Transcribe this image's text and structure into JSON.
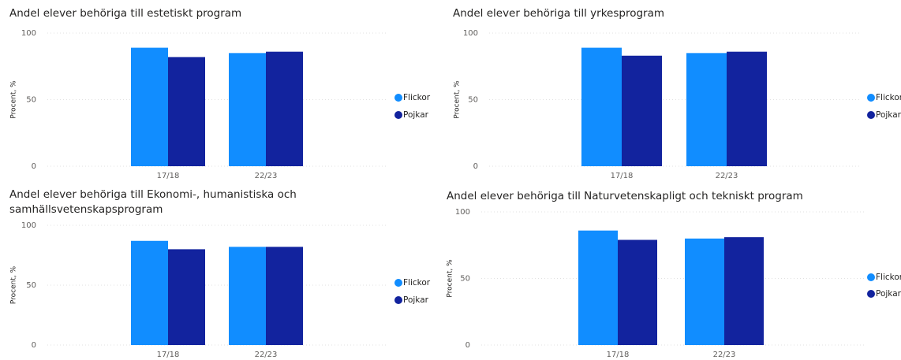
{
  "chart_data": [
    {
      "type": "bar",
      "title": "Andel elever behöriga till estetiskt program",
      "y_label": "Procent, %",
      "categories": [
        "17/18",
        "22/23"
      ],
      "series": [
        {
          "name": "Flickor",
          "color": "#118dff",
          "values": [
            89,
            85
          ]
        },
        {
          "name": "Pojkar",
          "color": "#12239e",
          "values": [
            82,
            86
          ]
        }
      ],
      "ylim": [
        0,
        100
      ],
      "yticks": [
        0,
        50,
        100
      ],
      "grid": true,
      "legend": "right"
    },
    {
      "type": "bar",
      "title": "Andel elever behöriga till yrkesprogram",
      "y_label": "Procent, %",
      "categories": [
        "17/18",
        "22/23"
      ],
      "series": [
        {
          "name": "Flickor",
          "color": "#118dff",
          "values": [
            89,
            85
          ]
        },
        {
          "name": "Pojkar",
          "color": "#12239e",
          "values": [
            83,
            86
          ]
        }
      ],
      "ylim": [
        0,
        100
      ],
      "yticks": [
        0,
        50,
        100
      ],
      "grid": true,
      "legend": "right"
    },
    {
      "type": "bar",
      "title": "Andel elever behöriga till Ekonomi-, humanistiska och samhällsvetenskapsprogram",
      "y_label": "Procent, %",
      "categories": [
        "17/18",
        "22/23"
      ],
      "series": [
        {
          "name": "Flickor",
          "color": "#118dff",
          "values": [
            87,
            82
          ]
        },
        {
          "name": "Pojkar",
          "color": "#12239e",
          "values": [
            80,
            82
          ]
        }
      ],
      "ylim": [
        0,
        100
      ],
      "yticks": [
        0,
        50,
        100
      ],
      "grid": true,
      "legend": "right"
    },
    {
      "type": "bar",
      "title": "Andel elever behöriga till Naturvetenskapligt och tekniskt program",
      "y_label": "Procent, %",
      "categories": [
        "17/18",
        "22/23"
      ],
      "series": [
        {
          "name": "Flickor",
          "color": "#118dff",
          "values": [
            86,
            80
          ]
        },
        {
          "name": "Pojkar",
          "color": "#12239e",
          "values": [
            79,
            81
          ]
        }
      ],
      "ylim": [
        0,
        100
      ],
      "yticks": [
        0,
        50,
        100
      ],
      "grid": true,
      "legend": "right"
    }
  ]
}
